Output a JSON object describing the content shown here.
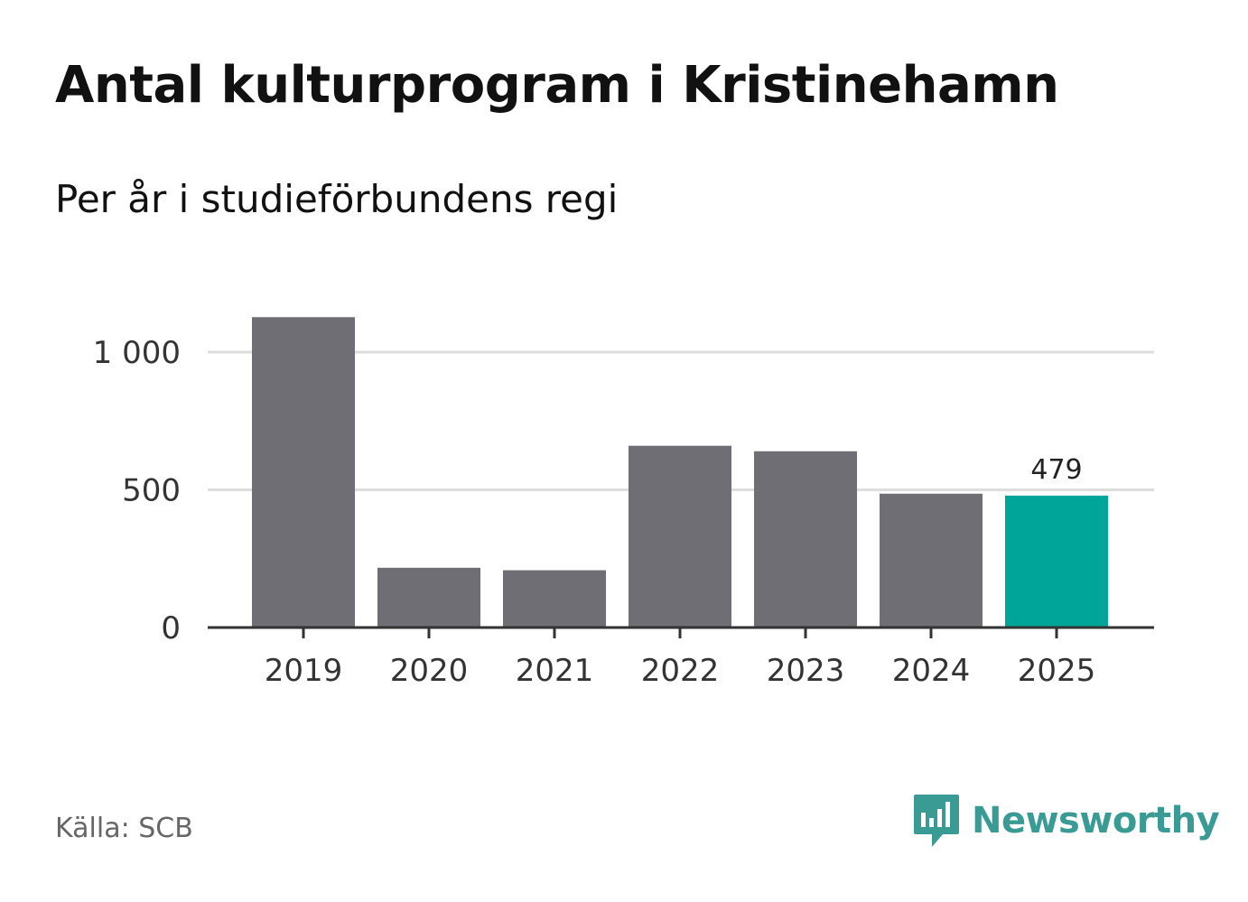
{
  "header": {
    "title": "Antal kulturprogram i Kristinehamn",
    "subtitle": "Per år i studieförbundens regi"
  },
  "footer": {
    "source": "Källa: SCB",
    "brand": "Newsworthy"
  },
  "colors": {
    "bar": "#6f6e74",
    "highlight": "#00a59a",
    "grid": "#dddddd",
    "axis": "#333333",
    "brand": "#3a9a94"
  },
  "chart_data": {
    "type": "bar",
    "categories": [
      "2019",
      "2020",
      "2021",
      "2022",
      "2023",
      "2024",
      "2025"
    ],
    "values": [
      1127,
      217,
      208,
      660,
      640,
      486,
      479
    ],
    "highlight_index": 6,
    "data_labels": [
      {
        "index": 6,
        "text": "479"
      }
    ],
    "yticks": [
      0,
      500,
      1000
    ],
    "ytick_labels": [
      "0",
      "500",
      "1 000"
    ],
    "ylim": [
      0,
      1250
    ],
    "grid": true,
    "legend": "none"
  }
}
